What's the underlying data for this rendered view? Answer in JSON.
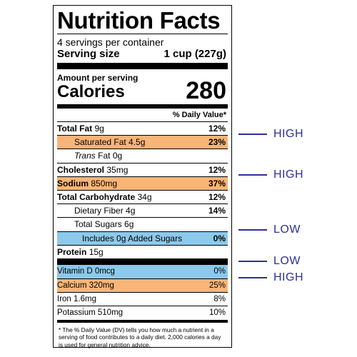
{
  "label": {
    "title": "Nutrition Facts",
    "servings": "4 servings per container",
    "serving_size_label": "Serving size",
    "serving_size_value": "1 cup (227g)",
    "amount_per_serving": "Amount per serving",
    "calories_label": "Calories",
    "calories_value": "280",
    "dv_header": "% Daily Value*",
    "rows": [
      {
        "name": "Total Fat",
        "amount": "9g",
        "pct": "12%"
      },
      {
        "name": "Saturated Fat 4.5g",
        "amount": "",
        "pct": "23%"
      },
      {
        "name": "Trans",
        "amount": "Fat 0g",
        "pct": ""
      },
      {
        "name": "Cholesterol",
        "amount": "35mg",
        "pct": "12%"
      },
      {
        "name": "Sodium",
        "amount": "850mg",
        "pct": "37%"
      },
      {
        "name": "Total Carbohydrate",
        "amount": "34g",
        "pct": "12%"
      },
      {
        "name": "Dietary Fiber 4g",
        "amount": "",
        "pct": "14%"
      },
      {
        "name": "Total Sugars 6g",
        "amount": "",
        "pct": ""
      },
      {
        "name": "Includes 0g Added Sugars",
        "amount": "",
        "pct": "0%"
      },
      {
        "name": "Protein",
        "amount": "15g",
        "pct": ""
      }
    ],
    "minerals": [
      {
        "name": "Vitamin D 0mcg",
        "pct": "0%"
      },
      {
        "name": "Calcium 320mg",
        "pct": "25%"
      },
      {
        "name": "Iron 1.6mg",
        "pct": "8%"
      },
      {
        "name": "Potassium 510mg",
        "pct": "10%"
      }
    ],
    "footnote": "* The % Daily Value (DV) tells you how much a nutrient in a serving of food contributes to a daily diet. 2,000 calories a day is used for general nutrition advice."
  },
  "annotations": {
    "saturated_fat": "HIGH",
    "sodium": "HIGH",
    "added_sugars": "LOW",
    "vitamin_d": "LOW",
    "calcium": "HIGH"
  },
  "colors": {
    "high_highlight": "#f9b477",
    "low_highlight": "#8cc9ea",
    "annotation_text": "#2e2f9a"
  }
}
